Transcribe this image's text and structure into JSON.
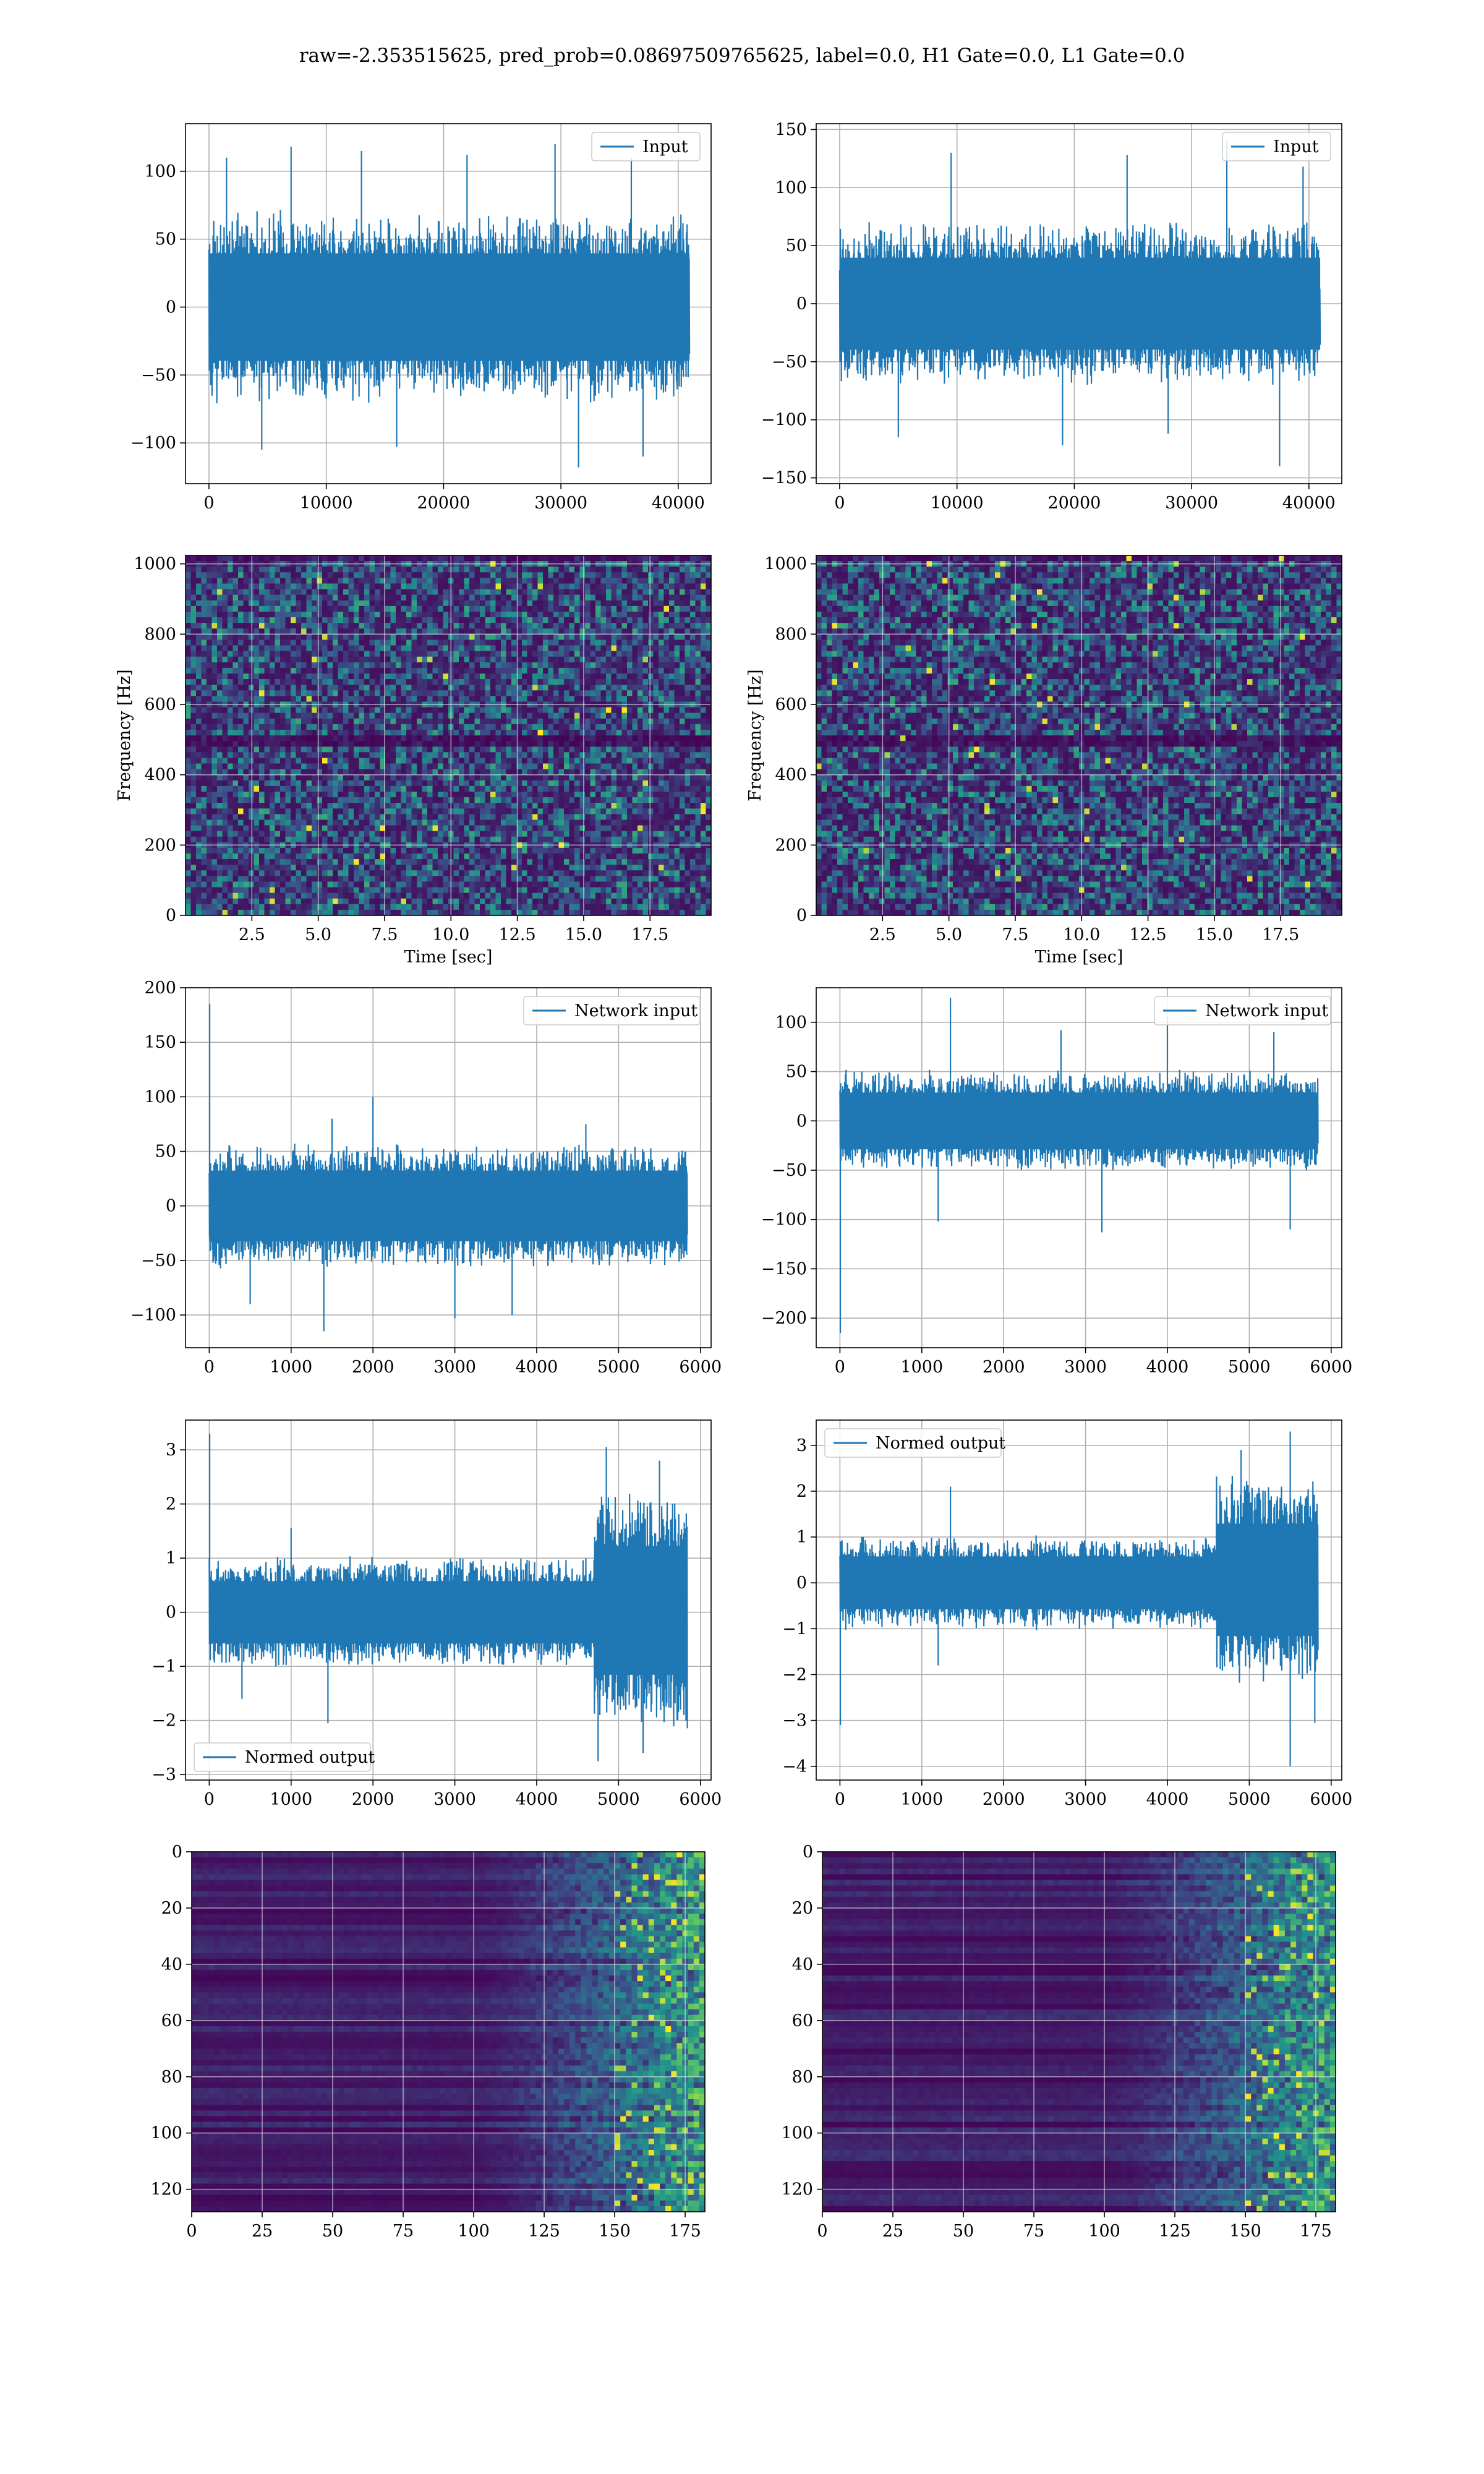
{
  "figure": {
    "title": "raw=-2.353515625, pred_prob=0.08697509765625, label=0.0, H1 Gate=0.0, L1 Gate=0.0"
  },
  "chart_data": [
    {
      "id": "r1c1",
      "type": "line",
      "title": "",
      "xlabel": "",
      "ylabel": "",
      "xlim": [
        -2000,
        42800
      ],
      "ylim": [
        -130,
        135
      ],
      "xticks": [
        0,
        10000,
        20000,
        30000,
        40000
      ],
      "yticks": [
        -100,
        -50,
        0,
        50,
        100
      ],
      "grid": true,
      "legend": {
        "loc": "upper right"
      },
      "series": [
        {
          "name": "Input",
          "color": "#1f77b4",
          "x_range": [
            0,
            40960
          ],
          "band_low": -55,
          "band_high": 55,
          "spikes_high": [
            [
              1500,
              110
            ],
            [
              7000,
              118
            ],
            [
              13000,
              115
            ],
            [
              22000,
              112
            ],
            [
              29500,
              120
            ],
            [
              36000,
              110
            ]
          ],
          "spikes_low": [
            [
              4500,
              -105
            ],
            [
              16000,
              -103
            ],
            [
              31500,
              -118
            ],
            [
              37000,
              -110
            ]
          ]
        }
      ]
    },
    {
      "id": "r1c2",
      "type": "line",
      "title": "",
      "xlabel": "",
      "ylabel": "",
      "xlim": [
        -2000,
        42800
      ],
      "ylim": [
        -155,
        155
      ],
      "xticks": [
        0,
        10000,
        20000,
        30000,
        40000
      ],
      "yticks": [
        -150,
        -100,
        -50,
        0,
        50,
        100,
        150
      ],
      "grid": true,
      "legend": {
        "loc": "upper right"
      },
      "series": [
        {
          "name": "Input",
          "color": "#1f77b4",
          "x_range": [
            0,
            40960
          ],
          "band_low": -55,
          "band_high": 55,
          "spikes_high": [
            [
              9500,
              130
            ],
            [
              24500,
              128
            ],
            [
              33000,
              140
            ],
            [
              39500,
              118
            ]
          ],
          "spikes_low": [
            [
              5000,
              -115
            ],
            [
              19000,
              -122
            ],
            [
              37500,
              -140
            ],
            [
              28000,
              -112
            ]
          ]
        }
      ]
    },
    {
      "id": "r2c1",
      "type": "heatmap",
      "title": "",
      "xlabel": "Time [sec]",
      "ylabel": "Frequency [Hz]",
      "xlim": [
        0,
        19.8
      ],
      "ylim": [
        0,
        1024
      ],
      "xticks": [
        2.5,
        5.0,
        7.5,
        10.0,
        12.5,
        15.0,
        17.5
      ],
      "yticks": [
        0,
        200,
        400,
        600,
        800,
        1000
      ],
      "grid": true,
      "colormap": "viridis",
      "dark_band_hz": 500
    },
    {
      "id": "r2c2",
      "type": "heatmap",
      "title": "",
      "xlabel": "Time [sec]",
      "ylabel": "Frequency [Hz]",
      "xlim": [
        0,
        19.8
      ],
      "ylim": [
        0,
        1024
      ],
      "xticks": [
        2.5,
        5.0,
        7.5,
        10.0,
        12.5,
        15.0,
        17.5
      ],
      "yticks": [
        0,
        200,
        400,
        600,
        800,
        1000
      ],
      "grid": true,
      "colormap": "viridis",
      "dark_band_hz": 500
    },
    {
      "id": "r3c1",
      "type": "line",
      "title": "",
      "xlabel": "",
      "ylabel": "",
      "xlim": [
        -290,
        6130
      ],
      "ylim": [
        -130,
        200
      ],
      "xticks": [
        0,
        1000,
        2000,
        3000,
        4000,
        5000,
        6000
      ],
      "yticks": [
        -100,
        -50,
        0,
        50,
        100,
        150,
        200
      ],
      "grid": true,
      "legend": {
        "loc": "upper right"
      },
      "series": [
        {
          "name": "Network input",
          "color": "#1f77b4",
          "x_range": [
            0,
            5840
          ],
          "band_low": -45,
          "band_high": 45,
          "spikes_high": [
            [
              5,
              185
            ],
            [
              2000,
              100
            ],
            [
              1500,
              80
            ],
            [
              4600,
              75
            ]
          ],
          "spikes_low": [
            [
              1400,
              -115
            ],
            [
              3000,
              -103
            ],
            [
              3700,
              -100
            ],
            [
              500,
              -90
            ]
          ]
        }
      ]
    },
    {
      "id": "r3c2",
      "type": "line",
      "title": "",
      "xlabel": "",
      "ylabel": "",
      "xlim": [
        -290,
        6130
      ],
      "ylim": [
        -230,
        135
      ],
      "xticks": [
        0,
        1000,
        2000,
        3000,
        4000,
        5000,
        6000
      ],
      "yticks": [
        -200,
        -150,
        -100,
        -50,
        0,
        50,
        100
      ],
      "grid": true,
      "legend": {
        "loc": "upper right"
      },
      "series": [
        {
          "name": "Network input",
          "color": "#1f77b4",
          "x_range": [
            0,
            5840
          ],
          "band_low": -40,
          "band_high": 40,
          "spikes_high": [
            [
              1350,
              125
            ],
            [
              4000,
              105
            ],
            [
              2700,
              92
            ],
            [
              5300,
              90
            ]
          ],
          "spikes_low": [
            [
              5,
              -215
            ],
            [
              3200,
              -113
            ],
            [
              1200,
              -102
            ],
            [
              5500,
              -110
            ]
          ]
        }
      ]
    },
    {
      "id": "r4c1",
      "type": "line",
      "title": "",
      "xlabel": "",
      "ylabel": "",
      "xlim": [
        -290,
        6130
      ],
      "ylim": [
        -3.1,
        3.55
      ],
      "xticks": [
        0,
        1000,
        2000,
        3000,
        4000,
        5000,
        6000
      ],
      "yticks": [
        -3,
        -2,
        -1,
        0,
        1,
        2,
        3
      ],
      "grid": true,
      "legend": {
        "loc": "lower left"
      },
      "series": [
        {
          "name": "Normed output",
          "color": "#1f77b4",
          "x_range": [
            0,
            5840
          ],
          "band_low": -0.8,
          "band_high": 0.8,
          "burst": {
            "start": 4700,
            "band_low": -1.7,
            "band_high": 1.8
          },
          "spikes_high": [
            [
              5,
              3.3
            ],
            [
              4850,
              3.05
            ],
            [
              5500,
              2.8
            ],
            [
              1000,
              1.55
            ]
          ],
          "spikes_low": [
            [
              1450,
              -2.05
            ],
            [
              4750,
              -2.75
            ],
            [
              5300,
              -2.6
            ],
            [
              400,
              -1.6
            ]
          ]
        }
      ]
    },
    {
      "id": "r4c2",
      "type": "line",
      "title": "",
      "xlabel": "",
      "ylabel": "",
      "xlim": [
        -290,
        6130
      ],
      "ylim": [
        -4.3,
        3.55
      ],
      "xticks": [
        0,
        1000,
        2000,
        3000,
        4000,
        5000,
        6000
      ],
      "yticks": [
        -4,
        -3,
        -2,
        -1,
        0,
        1,
        2,
        3
      ],
      "grid": true,
      "legend": {
        "loc": "upper left"
      },
      "series": [
        {
          "name": "Normed output",
          "color": "#1f77b4",
          "x_range": [
            0,
            5840
          ],
          "band_low": -0.8,
          "band_high": 0.8,
          "burst": {
            "start": 4600,
            "band_low": -1.7,
            "band_high": 1.9
          },
          "spikes_high": [
            [
              5,
              0.9
            ],
            [
              1350,
              2.1
            ],
            [
              4900,
              2.9
            ],
            [
              5500,
              3.3
            ]
          ],
          "spikes_low": [
            [
              5,
              -3.1
            ],
            [
              5500,
              -4.0
            ],
            [
              5800,
              -3.05
            ],
            [
              1200,
              -1.8
            ]
          ]
        }
      ]
    },
    {
      "id": "r5c1",
      "type": "heatmap",
      "title": "",
      "xlabel": "",
      "ylabel": "",
      "xlim": [
        0,
        182
      ],
      "ylim": [
        128,
        0
      ],
      "xticks": [
        0,
        25,
        50,
        75,
        100,
        125,
        150,
        175
      ],
      "yticks": [
        0,
        20,
        40,
        60,
        80,
        100,
        120
      ],
      "grid": true,
      "colormap": "viridis",
      "bright_after": 100
    },
    {
      "id": "r5c2",
      "type": "heatmap",
      "title": "",
      "xlabel": "",
      "ylabel": "",
      "xlim": [
        0,
        182
      ],
      "ylim": [
        128,
        0
      ],
      "xticks": [
        0,
        25,
        50,
        75,
        100,
        125,
        150,
        175
      ],
      "yticks": [
        0,
        20,
        40,
        60,
        80,
        100,
        120
      ],
      "grid": true,
      "colormap": "viridis",
      "bright_after": 100
    }
  ]
}
